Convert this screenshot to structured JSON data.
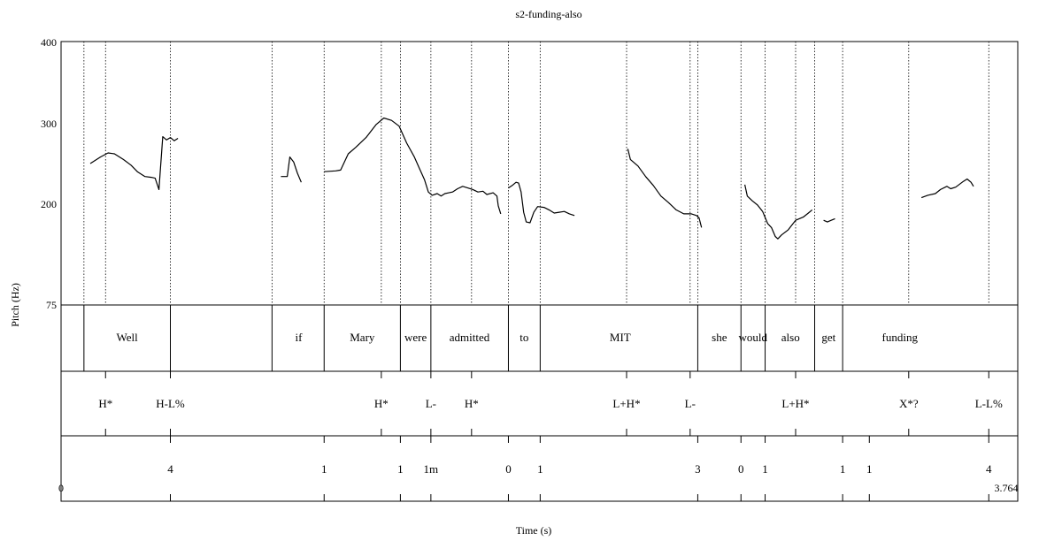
{
  "title": "s2-funding-also",
  "x_axis": {
    "label": "Time (s)",
    "min_label": "0",
    "max_label": "3.764",
    "min": 0,
    "max": 3.764
  },
  "y_axis": {
    "label": "Pitch (Hz)",
    "ticks": [
      "400",
      "300",
      "200",
      "75"
    ]
  },
  "chart_data": {
    "type": "line",
    "title": "s2-funding-also",
    "xlabel": "Time (s)",
    "ylabel": "Pitch (Hz)",
    "xlim": [
      0,
      3.764
    ],
    "ylim": [
      75,
      400
    ],
    "y_ticks": [
      75,
      200,
      300,
      400
    ],
    "grid": false,
    "series": [
      {
        "values": [
          [
            0.115,
            250
          ],
          [
            0.155,
            258
          ],
          [
            0.185,
            263
          ],
          [
            0.21,
            262
          ],
          [
            0.245,
            255
          ],
          [
            0.275,
            248
          ],
          [
            0.3,
            240
          ],
          [
            0.33,
            234
          ],
          [
            0.355,
            233
          ],
          [
            0.37,
            232
          ],
          [
            0.385,
            218
          ],
          [
            0.4,
            283
          ],
          [
            0.415,
            279
          ],
          [
            0.43,
            282
          ],
          [
            0.445,
            278
          ],
          [
            0.46,
            281
          ]
        ]
      },
      {
        "values": [
          [
            0.865,
            234
          ],
          [
            0.89,
            234
          ],
          [
            0.9,
            258
          ],
          [
            0.915,
            252
          ],
          [
            0.93,
            238
          ],
          [
            0.945,
            227
          ]
        ]
      },
      {
        "values": [
          [
            1.035,
            240
          ],
          [
            1.08,
            241
          ],
          [
            1.1,
            242
          ],
          [
            1.13,
            262
          ],
          [
            1.16,
            270
          ],
          [
            1.2,
            282
          ],
          [
            1.24,
            298
          ],
          [
            1.27,
            306
          ],
          [
            1.3,
            303
          ],
          [
            1.33,
            296
          ],
          [
            1.36,
            275
          ],
          [
            1.39,
            258
          ],
          [
            1.41,
            244
          ],
          [
            1.43,
            230
          ],
          [
            1.445,
            215
          ],
          [
            1.46,
            211
          ],
          [
            1.48,
            213
          ],
          [
            1.495,
            210
          ],
          [
            1.51,
            213
          ],
          [
            1.54,
            215
          ],
          [
            1.56,
            219
          ],
          [
            1.58,
            222
          ],
          [
            1.6,
            220
          ],
          [
            1.62,
            218
          ],
          [
            1.64,
            215
          ],
          [
            1.66,
            216
          ],
          [
            1.675,
            212
          ],
          [
            1.7,
            214
          ],
          [
            1.715,
            210
          ],
          [
            1.72,
            198
          ],
          [
            1.73,
            188
          ]
        ]
      },
      {
        "values": [
          [
            1.76,
            220
          ],
          [
            1.775,
            223
          ],
          [
            1.79,
            227
          ],
          [
            1.8,
            226
          ],
          [
            1.81,
            215
          ],
          [
            1.82,
            190
          ],
          [
            1.83,
            178
          ],
          [
            1.845,
            177
          ],
          [
            1.86,
            190
          ],
          [
            1.875,
            197
          ],
          [
            1.9,
            196
          ],
          [
            1.92,
            193
          ],
          [
            1.94,
            189
          ],
          [
            1.96,
            190
          ],
          [
            1.98,
            191
          ],
          [
            2.0,
            188
          ],
          [
            2.02,
            186
          ]
        ]
      },
      {
        "values": [
          [
            2.23,
            268
          ],
          [
            2.24,
            255
          ],
          [
            2.27,
            247
          ],
          [
            2.3,
            234
          ],
          [
            2.33,
            223
          ],
          [
            2.36,
            210
          ],
          [
            2.39,
            202
          ],
          [
            2.42,
            193
          ],
          [
            2.45,
            188
          ],
          [
            2.48,
            188
          ],
          [
            2.5,
            186
          ],
          [
            2.51,
            183
          ],
          [
            2.52,
            171
          ]
        ]
      },
      {
        "values": [
          [
            2.69,
            224
          ],
          [
            2.7,
            210
          ],
          [
            2.72,
            204
          ],
          [
            2.74,
            199
          ],
          [
            2.76,
            191
          ],
          [
            2.78,
            176
          ],
          [
            2.795,
            171
          ],
          [
            2.81,
            160
          ],
          [
            2.82,
            157
          ],
          [
            2.835,
            162
          ],
          [
            2.86,
            168
          ],
          [
            2.89,
            180
          ],
          [
            2.92,
            184
          ],
          [
            2.94,
            189
          ],
          [
            2.955,
            193
          ]
        ]
      },
      {
        "values": [
          [
            3.0,
            180
          ],
          [
            3.015,
            178
          ],
          [
            3.03,
            180
          ],
          [
            3.045,
            182
          ]
        ]
      },
      {
        "values": [
          [
            3.385,
            208
          ],
          [
            3.41,
            211
          ],
          [
            3.44,
            213
          ],
          [
            3.46,
            218
          ],
          [
            3.485,
            222
          ],
          [
            3.5,
            219
          ],
          [
            3.52,
            221
          ],
          [
            3.55,
            228
          ],
          [
            3.565,
            231
          ],
          [
            3.58,
            227
          ],
          [
            3.59,
            222
          ]
        ]
      }
    ]
  },
  "tiers": [
    {
      "name": "words",
      "boundaries": [
        0.09,
        0.43,
        0.83,
        1.035,
        1.335,
        1.455,
        1.76,
        1.885,
        2.505,
        2.675,
        2.77,
        2.965,
        3.075
      ],
      "labels": [
        {
          "t": 0.26,
          "text": "Well"
        },
        {
          "t": 0.935,
          "text": "if"
        },
        {
          "t": 1.185,
          "text": "Mary"
        },
        {
          "t": 1.395,
          "text": "were"
        },
        {
          "t": 1.607,
          "text": "admitted"
        },
        {
          "t": 1.822,
          "text": "to"
        },
        {
          "t": 2.2,
          "text": "MIT"
        },
        {
          "t": 2.59,
          "text": "she"
        },
        {
          "t": 2.722,
          "text": "would"
        },
        {
          "t": 2.87,
          "text": "also"
        },
        {
          "t": 3.02,
          "text": "get"
        },
        {
          "t": 3.3,
          "text": "funding"
        }
      ]
    },
    {
      "name": "tones",
      "labels": [
        {
          "t": 0.175,
          "text": "H*"
        },
        {
          "t": 0.43,
          "text": "H-L%"
        },
        {
          "t": 1.26,
          "text": "H*"
        },
        {
          "t": 1.455,
          "text": "L-"
        },
        {
          "t": 1.615,
          "text": "H*"
        },
        {
          "t": 2.225,
          "text": "L+H*"
        },
        {
          "t": 2.475,
          "text": "L-"
        },
        {
          "t": 2.89,
          "text": "L+H*"
        },
        {
          "t": 3.335,
          "text": "X*?"
        },
        {
          "t": 3.65,
          "text": "L-L%"
        }
      ]
    },
    {
      "name": "breaks",
      "labels": [
        {
          "t": 0.43,
          "text": "4"
        },
        {
          "t": 1.035,
          "text": "1"
        },
        {
          "t": 1.335,
          "text": "1"
        },
        {
          "t": 1.455,
          "text": "1m"
        },
        {
          "t": 1.76,
          "text": "0"
        },
        {
          "t": 1.885,
          "text": "1"
        },
        {
          "t": 2.505,
          "text": "3"
        },
        {
          "t": 2.675,
          "text": "0"
        },
        {
          "t": 2.77,
          "text": "1"
        },
        {
          "t": 3.075,
          "text": "1"
        },
        {
          "t": 3.18,
          "text": "1"
        },
        {
          "t": 3.65,
          "text": "4"
        }
      ]
    }
  ],
  "dotted_lines": [
    0.09,
    0.175,
    0.43,
    0.83,
    1.035,
    1.26,
    1.335,
    1.455,
    1.615,
    1.76,
    1.885,
    2.225,
    2.475,
    2.505,
    2.675,
    2.77,
    2.89,
    2.965,
    3.075,
    3.335,
    3.65
  ]
}
